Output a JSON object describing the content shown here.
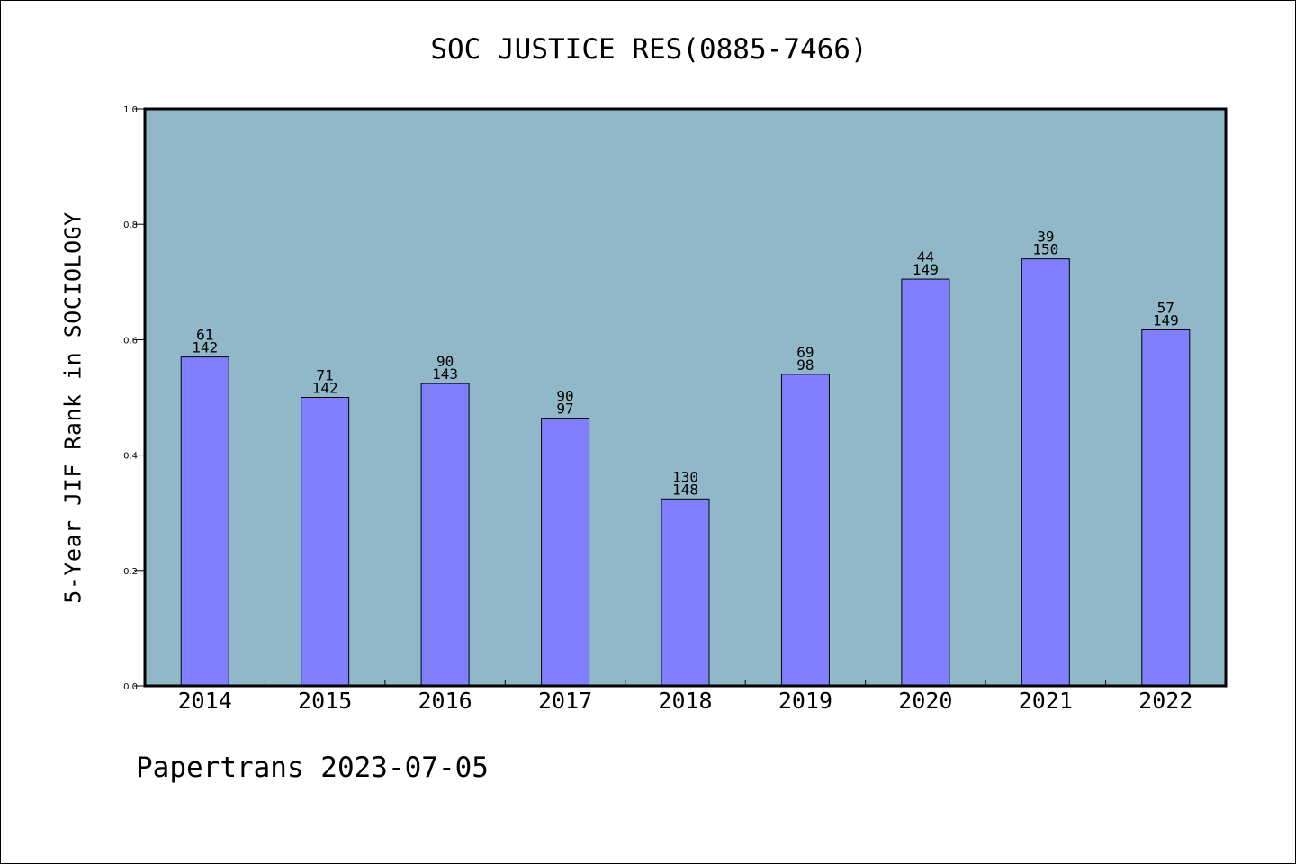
{
  "chart_data": {
    "type": "bar",
    "title": "SOC JUSTICE RES(0885-7466)",
    "xlabel": "",
    "ylabel": "5-Year JIF Rank in SOCIOLOGY",
    "ylim": [
      0,
      1.0
    ],
    "yticks": [
      "0.0",
      "0.2",
      "0.4",
      "0.6",
      "0.8",
      "1.0"
    ],
    "categories": [
      "2014",
      "2015",
      "2016",
      "2017",
      "2018",
      "2019",
      "2020",
      "2021",
      "2022"
    ],
    "values": [
      0.57,
      0.5,
      0.524,
      0.464,
      0.324,
      0.54,
      0.705,
      0.74,
      0.617
    ],
    "ranks": [
      "61",
      "71",
      "90",
      "90",
      "130",
      "69",
      "44",
      "39",
      "57"
    ],
    "totals": [
      "142",
      "142",
      "143",
      "97",
      "148",
      "98",
      "149",
      "150",
      "149"
    ],
    "grid": false,
    "colors": {
      "plot_background": "#90b8c8",
      "bar": "#8080ff",
      "bar_edge": "#000000"
    }
  },
  "footer": "Papertrans 2023-07-05"
}
